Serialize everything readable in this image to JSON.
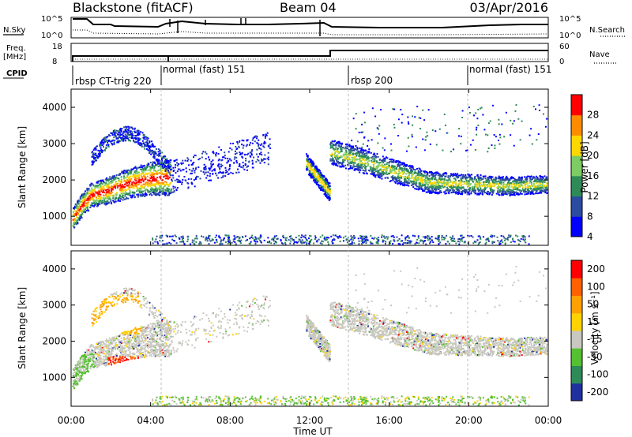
{
  "header": {
    "radar": "Blackstone (fitACF)",
    "beam": "Beam 04",
    "date": "03/Apr/2016"
  },
  "top_panels": {
    "nsky_label": "N.Sky",
    "nsky_ticks": [
      "10^5",
      "10^0"
    ],
    "nsearch_label": "N.Search",
    "nsearch_ticks": [
      "10^5",
      "10^0"
    ],
    "freq_label_1": "Freq.",
    "freq_label_2": "[MHz]",
    "freq_ticks": [
      "18",
      "8"
    ],
    "nave_label": "Nave",
    "nave_ticks": [
      "60",
      "0"
    ],
    "cpid_label": "CPID",
    "cpid_segments": [
      "rbsp CT-trig 220",
      "normal (fast) 151",
      "rbsp 200",
      "normal (fast) 151"
    ]
  },
  "chart_data": [
    {
      "type": "heatmap",
      "name": "power",
      "ylabel": "Slant Range [km]",
      "y_ticks": [
        "4000",
        "3000",
        "2000",
        "1000"
      ],
      "colorbar_label": "Power [dB]",
      "colorbar_ticks": [
        "28",
        "24",
        "20",
        "16",
        "12",
        "8",
        "4"
      ],
      "colors": [
        "#0000ff",
        "#2b4ba0",
        "#2e8b57",
        "#7ccc63",
        "#ffd700",
        "#ff8c00",
        "#ff0000"
      ],
      "xlim": [
        "00:00",
        "24:00"
      ],
      "ylim": [
        200,
        4500
      ],
      "ridges": [
        {
          "t": [
            0.0,
            0.5,
            1.0,
            2.0,
            3.0,
            4.0,
            5.0
          ],
          "km": [
            900,
            1300,
            1600,
            1750,
            1950,
            2050,
            2100
          ],
          "level": "high"
        },
        {
          "t": [
            12.5,
            13.0,
            14.0,
            16.0,
            18.0,
            20.0,
            22.0,
            24.0
          ],
          "km": [
            1700,
            2800,
            2650,
            2300,
            1950,
            1900,
            1850,
            1900
          ],
          "level": "mid"
        }
      ]
    },
    {
      "type": "heatmap",
      "name": "velocity",
      "ylabel": "Slant Range [km]",
      "y_ticks": [
        "4000",
        "3000",
        "2000",
        "1000"
      ],
      "colorbar_label": "Velocity [m s⁻¹]",
      "colorbar_ticks": [
        "200",
        "100",
        "50",
        "15",
        "-15",
        "-50",
        "-100",
        "-200"
      ],
      "colors": [
        "#2030a0",
        "#2e8b57",
        "#55c030",
        "#c8c8c0",
        "#ffd200",
        "#ffa000",
        "#ff6000",
        "#ff0000"
      ],
      "xlim": [
        "00:00",
        "24:00"
      ],
      "ylim": [
        200,
        4500
      ]
    }
  ],
  "x_axis": {
    "ticks": [
      "00:00",
      "04:00",
      "08:00",
      "12:00",
      "16:00",
      "20:00",
      "00:00"
    ],
    "label": "Time UT"
  }
}
